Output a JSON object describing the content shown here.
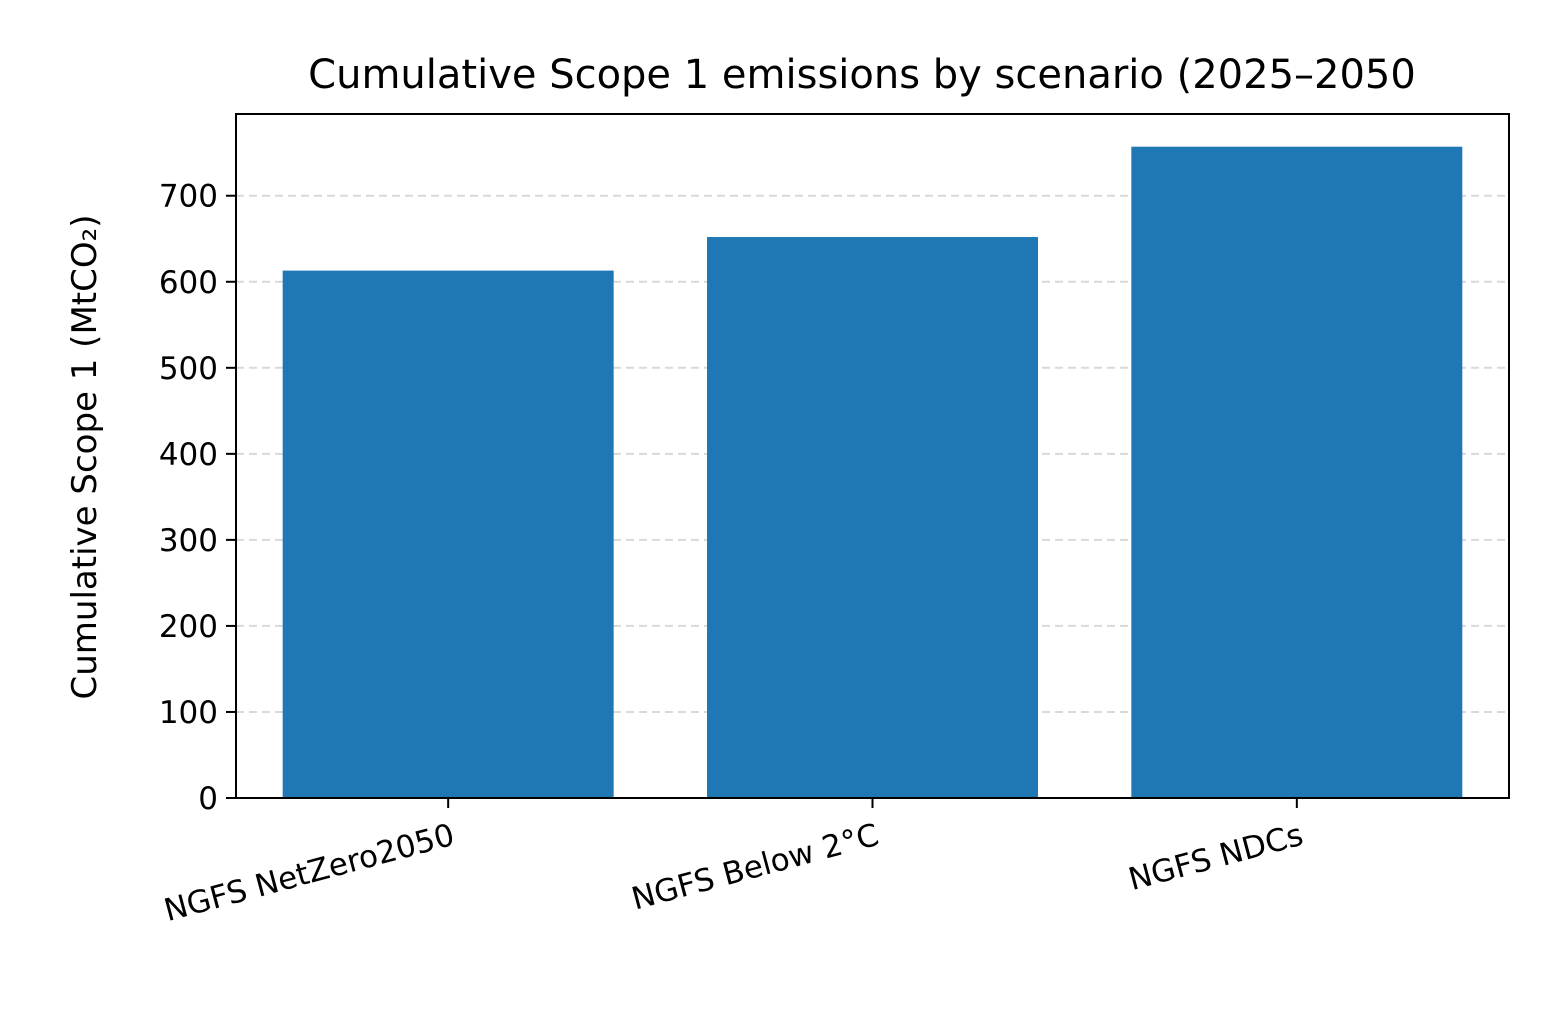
{
  "chart_data": {
    "type": "bar",
    "title": "Cumulative Scope 1 emissions by scenario (2025–2050",
    "xlabel": "",
    "ylabel": "Cumulative Scope 1 (MtCO₂)",
    "categories": [
      "NGFS NetZero2050",
      "NGFS Below 2°C",
      "NGFS NDCs"
    ],
    "values": [
      613,
      652,
      757
    ],
    "ylim": [
      0,
      795
    ],
    "yticks": [
      0,
      100,
      200,
      300,
      400,
      500,
      600,
      700
    ],
    "grid": "horizontal-dashed",
    "colors": {
      "bar": "#1f77b4",
      "grid": "#d9d9d9",
      "axis": "#000000"
    }
  }
}
